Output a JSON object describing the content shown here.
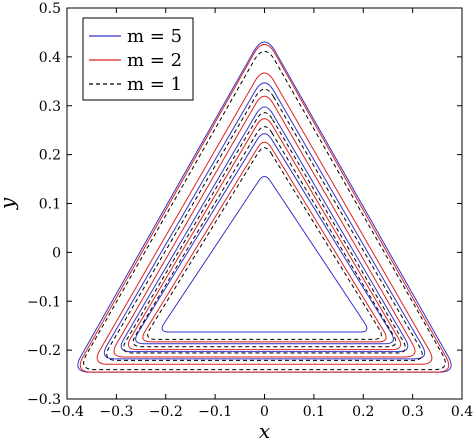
{
  "chart_data": {
    "type": "line",
    "title": "",
    "xlabel": "x",
    "ylabel": "y",
    "xlim": [
      -0.4,
      0.4
    ],
    "ylim": [
      -0.3,
      0.5
    ],
    "xticks": [
      "−0.4",
      "−0.3",
      "−0.2",
      "−0.1",
      "0",
      "0.1",
      "0.2",
      "0.3",
      "0.4"
    ],
    "yticks": [
      "−0.3",
      "−0.2",
      "−0.1",
      "0",
      "0.1",
      "0.2",
      "0.3",
      "0.4",
      "0.5"
    ],
    "grid": false,
    "legend_position": "top-left",
    "colors": {
      "m5": "#3333cc",
      "m2": "#dd2222",
      "m1": "#000000"
    },
    "series": [
      {
        "name": "m = 5",
        "legend_label": "m = 5",
        "style": "solid",
        "color": "#3333cc",
        "curves": [
          {
            "top_y": 0.45,
            "bottom_y": -0.245,
            "half_width": 0.39
          },
          {
            "top_y": 0.363,
            "bottom_y": -0.218,
            "half_width": 0.335
          },
          {
            "top_y": 0.312,
            "bottom_y": -0.203,
            "half_width": 0.3
          },
          {
            "top_y": 0.255,
            "bottom_y": -0.187,
            "half_width": 0.27
          },
          {
            "top_y": 0.164,
            "bottom_y": -0.163,
            "half_width": 0.215
          }
        ]
      },
      {
        "name": "m = 2",
        "legend_label": "m = 2",
        "style": "solid",
        "color": "#dd2222",
        "curves": [
          {
            "top_y": 0.445,
            "bottom_y": -0.245,
            "half_width": 0.385
          },
          {
            "top_y": 0.384,
            "bottom_y": -0.229,
            "half_width": 0.35
          },
          {
            "top_y": 0.335,
            "bottom_y": -0.214,
            "half_width": 0.315
          },
          {
            "top_y": 0.287,
            "bottom_y": -0.199,
            "half_width": 0.285
          },
          {
            "top_y": 0.237,
            "bottom_y": -0.183,
            "half_width": 0.255
          }
        ]
      },
      {
        "name": "m = 1",
        "legend_label": "m = 1",
        "style": "dashed",
        "color": "#000000",
        "curves": [
          {
            "top_y": 0.43,
            "bottom_y": -0.24,
            "half_width": 0.378
          },
          {
            "top_y": 0.35,
            "bottom_y": -0.221,
            "half_width": 0.33
          },
          {
            "top_y": 0.3,
            "bottom_y": -0.206,
            "half_width": 0.295
          },
          {
            "top_y": 0.27,
            "bottom_y": -0.193,
            "half_width": 0.275
          },
          {
            "top_y": 0.225,
            "bottom_y": -0.178,
            "half_width": 0.245
          }
        ]
      }
    ]
  }
}
